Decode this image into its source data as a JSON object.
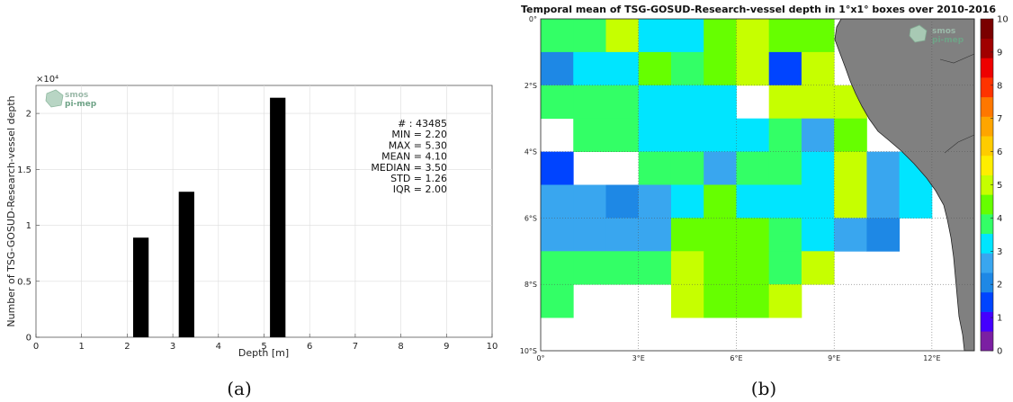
{
  "chart_data": [
    {
      "type": "bar",
      "xlabel": "Depth [m]",
      "ylabel": "Number of TSG-GOSUD-Research-vessel depth",
      "exponent_label": "×10⁴",
      "xlim": [
        0,
        10
      ],
      "ylim": [
        0,
        22500
      ],
      "xticks": [
        "0",
        "1",
        "2",
        "3",
        "4",
        "5",
        "6",
        "7",
        "8",
        "9",
        "10"
      ],
      "yticks": [
        "0",
        "0.5",
        "1",
        "1.5",
        "2"
      ],
      "grid": true,
      "x": [
        2.3,
        3.3,
        5.3
      ],
      "values": [
        8900,
        13000,
        21400
      ],
      "stats": [
        "# : 43485",
        "MIN = 2.20",
        "MAX =  5.30",
        "MEAN = 4.10",
        "MEDIAN = 3.50",
        "STD = 1.26",
        "IQR = 2.00"
      ],
      "logo": {
        "line1": "smos",
        "line2": "pi-mep"
      },
      "caption": "(a)"
    },
    {
      "type": "heatmap",
      "title": "Temporal mean of TSG-GOSUD-Research-vessel depth in 1°x1° boxes over 2010-2016",
      "xticks": [
        "0°",
        "3°E",
        "6°E",
        "9°E",
        "12°E"
      ],
      "yticks": [
        "0°",
        "2°S",
        "4°S",
        "6°S",
        "8°S",
        "10°S"
      ],
      "colorbar_ticks": [
        "0",
        "1",
        "2",
        "3",
        "4",
        "5",
        "6",
        "7",
        "8",
        "9",
        "10"
      ],
      "colorbar_range": [
        0,
        10
      ],
      "grid": true,
      "logo": {
        "line1": "smos",
        "line2": "pi-mep"
      },
      "caption": "(b)",
      "cell_values": [
        [
          3.6,
          3.6,
          5.0,
          3.2,
          3.2,
          4.3,
          5.0,
          4.7,
          4.7,
          null,
          null,
          null,
          null
        ],
        [
          2.3,
          3.3,
          3.3,
          4.7,
          3.8,
          4.7,
          4.9,
          1.7,
          4.9,
          null,
          null,
          null,
          null
        ],
        [
          3.6,
          3.6,
          3.6,
          3.3,
          3.3,
          3.3,
          null,
          4.9,
          4.9,
          4.9,
          null,
          null,
          null
        ],
        [
          null,
          3.6,
          3.6,
          3.3,
          3.3,
          3.3,
          3.3,
          3.6,
          2.6,
          4.2,
          null,
          null,
          null
        ],
        [
          1.7,
          null,
          null,
          3.6,
          3.6,
          2.6,
          3.6,
          3.6,
          3.3,
          4.9,
          2.6,
          3.3,
          null
        ],
        [
          2.6,
          2.6,
          1.9,
          2.6,
          3.3,
          4.3,
          3.3,
          3.3,
          3.3,
          4.9,
          2.6,
          3.3,
          null
        ],
        [
          2.6,
          2.6,
          2.6,
          2.6,
          4.2,
          4.7,
          4.7,
          3.6,
          3.3,
          2.6,
          2.0,
          null,
          null
        ],
        [
          3.6,
          3.6,
          3.6,
          3.6,
          4.9,
          4.7,
          4.3,
          3.6,
          4.9,
          null,
          null,
          null,
          null
        ],
        [
          3.6,
          null,
          null,
          null,
          4.9,
          4.3,
          4.7,
          4.9,
          null,
          null,
          null,
          null,
          null
        ],
        [
          null,
          null,
          null,
          null,
          null,
          null,
          null,
          null,
          null,
          null,
          null,
          null,
          null
        ]
      ],
      "colormap": [
        "#7b1fa2",
        "#4400ff",
        "#0044ff",
        "#1e88e5",
        "#39a6ef",
        "#00e5ff",
        "#33ff66",
        "#66ff00",
        "#c6ff00",
        "#ffee00",
        "#ffcc00",
        "#ffa500",
        "#ff7700",
        "#ff3300",
        "#ee0000",
        "#a00000",
        "#7a0000"
      ]
    }
  ]
}
